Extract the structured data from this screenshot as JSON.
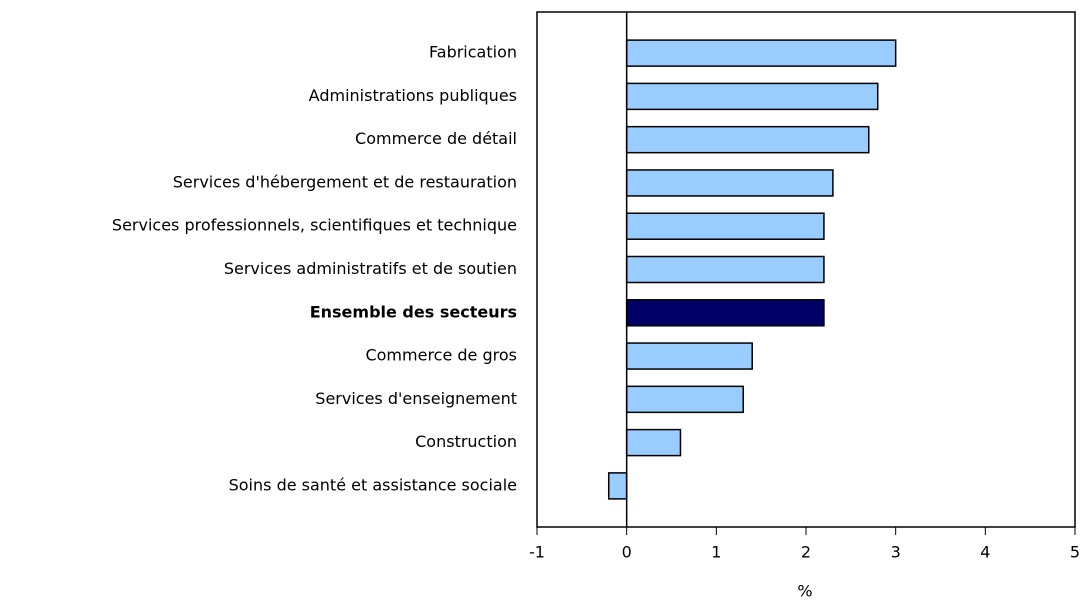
{
  "chart_data": {
    "type": "bar",
    "orientation": "horizontal",
    "categories": [
      "Fabrication",
      "Administrations publiques",
      "Commerce de détail",
      "Services d'hébergement et de restauration",
      "Services professionnels, scientifiques et technique",
      "Services administratifs et de soutien",
      "Ensemble des secteurs",
      "Commerce de gros",
      "Services d'enseignement",
      "Construction",
      "Soins de santé et assistance sociale"
    ],
    "values": [
      3.0,
      2.8,
      2.7,
      2.3,
      2.2,
      2.2,
      2.2,
      1.4,
      1.3,
      0.6,
      -0.2
    ],
    "colors": [
      "#99ccff",
      "#99ccff",
      "#99ccff",
      "#99ccff",
      "#99ccff",
      "#99ccff",
      "#000066",
      "#99ccff",
      "#99ccff",
      "#99ccff",
      "#99ccff"
    ],
    "xlabel": "%",
    "xlim": [
      -1,
      5
    ],
    "xticks": [
      -1,
      0,
      1,
      2,
      3,
      4,
      5
    ],
    "grid": false
  }
}
